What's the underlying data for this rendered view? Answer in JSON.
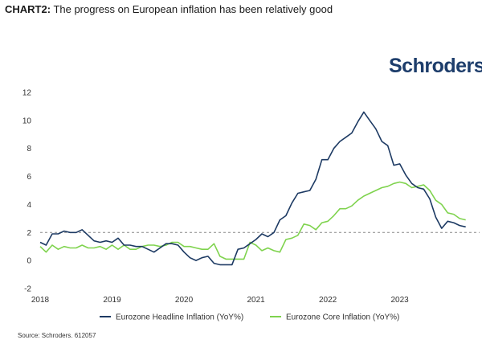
{
  "header": {
    "tag": "CHART2:",
    "title": " The progress on European inflation has been relatively good"
  },
  "logo": {
    "text": "Schroders"
  },
  "source": "Source: Schroders. 612057",
  "colors": {
    "headline": "#1d3a63",
    "core": "#7fd34e",
    "reference": "#888888"
  },
  "chart_data": {
    "type": "line",
    "xlim": [
      2018.0,
      2023.92
    ],
    "ylim": [
      -2,
      12
    ],
    "y_ticks": [
      -2,
      0,
      2,
      4,
      6,
      8,
      10,
      12
    ],
    "x_ticks": [
      2018,
      2019,
      2020,
      2021,
      2022,
      2023
    ],
    "x_tick_labels": [
      "2018",
      "2019",
      "2020",
      "2021",
      "2022",
      "2023"
    ],
    "y_tick_labels": [
      "-2",
      "0",
      "2",
      "4",
      "6",
      "8",
      "10",
      "12"
    ],
    "reference_line": 2,
    "grid": false,
    "legend_position": "bottom",
    "series": [
      {
        "name": "Eurozone Headline Inflation (YoY%)",
        "x": [
          2018.0,
          2018.083,
          2018.167,
          2018.25,
          2018.333,
          2018.417,
          2018.5,
          2018.583,
          2018.667,
          2018.75,
          2018.833,
          2018.917,
          2019.0,
          2019.083,
          2019.167,
          2019.25,
          2019.333,
          2019.417,
          2019.5,
          2019.583,
          2019.667,
          2019.75,
          2019.833,
          2019.917,
          2020.0,
          2020.083,
          2020.167,
          2020.25,
          2020.333,
          2020.417,
          2020.5,
          2020.583,
          2020.667,
          2020.75,
          2020.833,
          2020.917,
          2021.0,
          2021.083,
          2021.167,
          2021.25,
          2021.333,
          2021.417,
          2021.5,
          2021.583,
          2021.667,
          2021.75,
          2021.833,
          2021.917,
          2022.0,
          2022.083,
          2022.167,
          2022.25,
          2022.333,
          2022.417,
          2022.5,
          2022.583,
          2022.667,
          2022.75,
          2022.833,
          2022.917,
          2023.0,
          2023.083,
          2023.167,
          2023.25,
          2023.333,
          2023.417,
          2023.5,
          2023.583,
          2023.667,
          2023.75,
          2023.833,
          2023.917
        ],
        "values": [
          1.3,
          1.1,
          1.9,
          1.9,
          2.1,
          2.0,
          2.0,
          2.2,
          1.8,
          1.4,
          1.3,
          1.4,
          1.3,
          1.6,
          1.1,
          1.1,
          1.0,
          1.0,
          0.8,
          0.6,
          0.9,
          1.2,
          1.2,
          1.1,
          0.6,
          0.2,
          0.0,
          0.2,
          0.3,
          -0.2,
          -0.3,
          -0.3,
          -0.3,
          0.8,
          0.9,
          1.2,
          1.5,
          1.9,
          1.7,
          2.0,
          2.9,
          3.2,
          4.1,
          4.8,
          4.9,
          5.0,
          5.8,
          7.2,
          7.2,
          8.0,
          8.5,
          8.8,
          9.1,
          9.9,
          10.6,
          10.0,
          9.4,
          8.5,
          8.2,
          6.8,
          6.9,
          6.1,
          5.5,
          5.2,
          5.1,
          4.4,
          3.1,
          2.3,
          2.8,
          2.7,
          2.5,
          2.4
        ]
      },
      {
        "name": "Eurozone Core Inflation (YoY%)",
        "x": [
          2018.0,
          2018.083,
          2018.167,
          2018.25,
          2018.333,
          2018.417,
          2018.5,
          2018.583,
          2018.667,
          2018.75,
          2018.833,
          2018.917,
          2019.0,
          2019.083,
          2019.167,
          2019.25,
          2019.333,
          2019.417,
          2019.5,
          2019.583,
          2019.667,
          2019.75,
          2019.833,
          2019.917,
          2020.0,
          2020.083,
          2020.167,
          2020.25,
          2020.333,
          2020.417,
          2020.5,
          2020.583,
          2020.667,
          2020.75,
          2020.833,
          2020.917,
          2021.0,
          2021.083,
          2021.167,
          2021.25,
          2021.333,
          2021.417,
          2021.5,
          2021.583,
          2021.667,
          2021.75,
          2021.833,
          2021.917,
          2022.0,
          2022.083,
          2022.167,
          2022.25,
          2022.333,
          2022.417,
          2022.5,
          2022.583,
          2022.667,
          2022.75,
          2022.833,
          2022.917,
          2023.0,
          2023.083,
          2023.167,
          2023.25,
          2023.333,
          2023.417,
          2023.5,
          2023.583,
          2023.667,
          2023.75,
          2023.833,
          2023.917
        ],
        "values": [
          1.0,
          0.6,
          1.1,
          0.8,
          1.0,
          0.9,
          0.9,
          1.1,
          0.9,
          0.9,
          1.0,
          0.8,
          1.1,
          0.8,
          1.1,
          0.8,
          0.8,
          1.0,
          1.1,
          1.1,
          1.0,
          1.1,
          1.3,
          1.3,
          1.0,
          1.0,
          0.9,
          0.8,
          0.8,
          1.2,
          0.3,
          0.1,
          0.1,
          0.1,
          0.1,
          1.3,
          1.1,
          0.7,
          0.9,
          0.7,
          0.6,
          1.5,
          1.6,
          1.8,
          2.6,
          2.5,
          2.2,
          2.7,
          2.8,
          3.2,
          3.7,
          3.7,
          3.9,
          4.3,
          4.6,
          4.8,
          5.0,
          5.2,
          5.3,
          5.5,
          5.6,
          5.5,
          5.2,
          5.3,
          5.4,
          5.0,
          4.3,
          4.0,
          3.4,
          3.3,
          3.0,
          2.9
        ]
      }
    ]
  }
}
